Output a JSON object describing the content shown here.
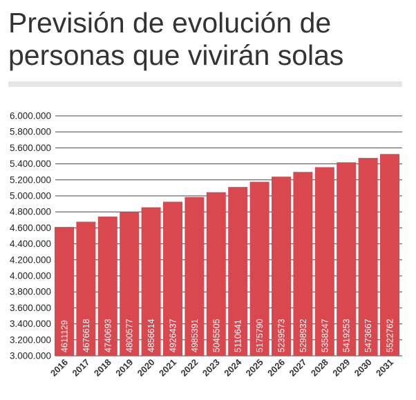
{
  "title": "Previsión de evolución de personas que vivirán solas",
  "colors": {
    "bar": "#d9474f",
    "grid": "#444444",
    "title": "#333333",
    "rule": "#e6e6e6",
    "bar_label": "#ffffff"
  },
  "chart_data": {
    "type": "bar",
    "title": "Previsión de evolución de personas que vivirán solas",
    "xlabel": "",
    "ylabel": "",
    "categories": [
      "2016",
      "2017",
      "2018",
      "2019",
      "2020",
      "2021",
      "2022",
      "2023",
      "2024",
      "2025",
      "2026",
      "2027",
      "2028",
      "2029",
      "2030",
      "2031"
    ],
    "values": [
      4611129,
      4676618,
      4740693,
      4800577,
      4856614,
      4926437,
      4985391,
      5045505,
      5110641,
      5175790,
      5239573,
      5298932,
      5358247,
      5419253,
      5473667,
      5522762
    ],
    "value_labels": [
      "4611129",
      "4676618",
      "4740693",
      "4800577",
      "4856614",
      "4926437",
      "4985391",
      "5045505",
      "5110641",
      "5175790",
      "5239573",
      "5298932",
      "5358247",
      "5419253",
      "5473667",
      "5522762"
    ],
    "ylim": [
      3000000,
      6000000
    ],
    "yticks": [
      3000000,
      3200000,
      3400000,
      3600000,
      3800000,
      4000000,
      4200000,
      4400000,
      4600000,
      4800000,
      5000000,
      5200000,
      5400000,
      5600000,
      5800000,
      6000000
    ],
    "ytick_labels": [
      "3.000.000",
      "3.200.000",
      "3.400.000",
      "3.600.000",
      "3.800.000",
      "4.000.000",
      "4.200.000",
      "4.400.000",
      "4.600.000",
      "4.800.000",
      "5.000.000",
      "5.200.000",
      "5.400.000",
      "5.600.000",
      "5.800.000",
      "6.000.000"
    ],
    "grid": true,
    "legend": "none"
  }
}
